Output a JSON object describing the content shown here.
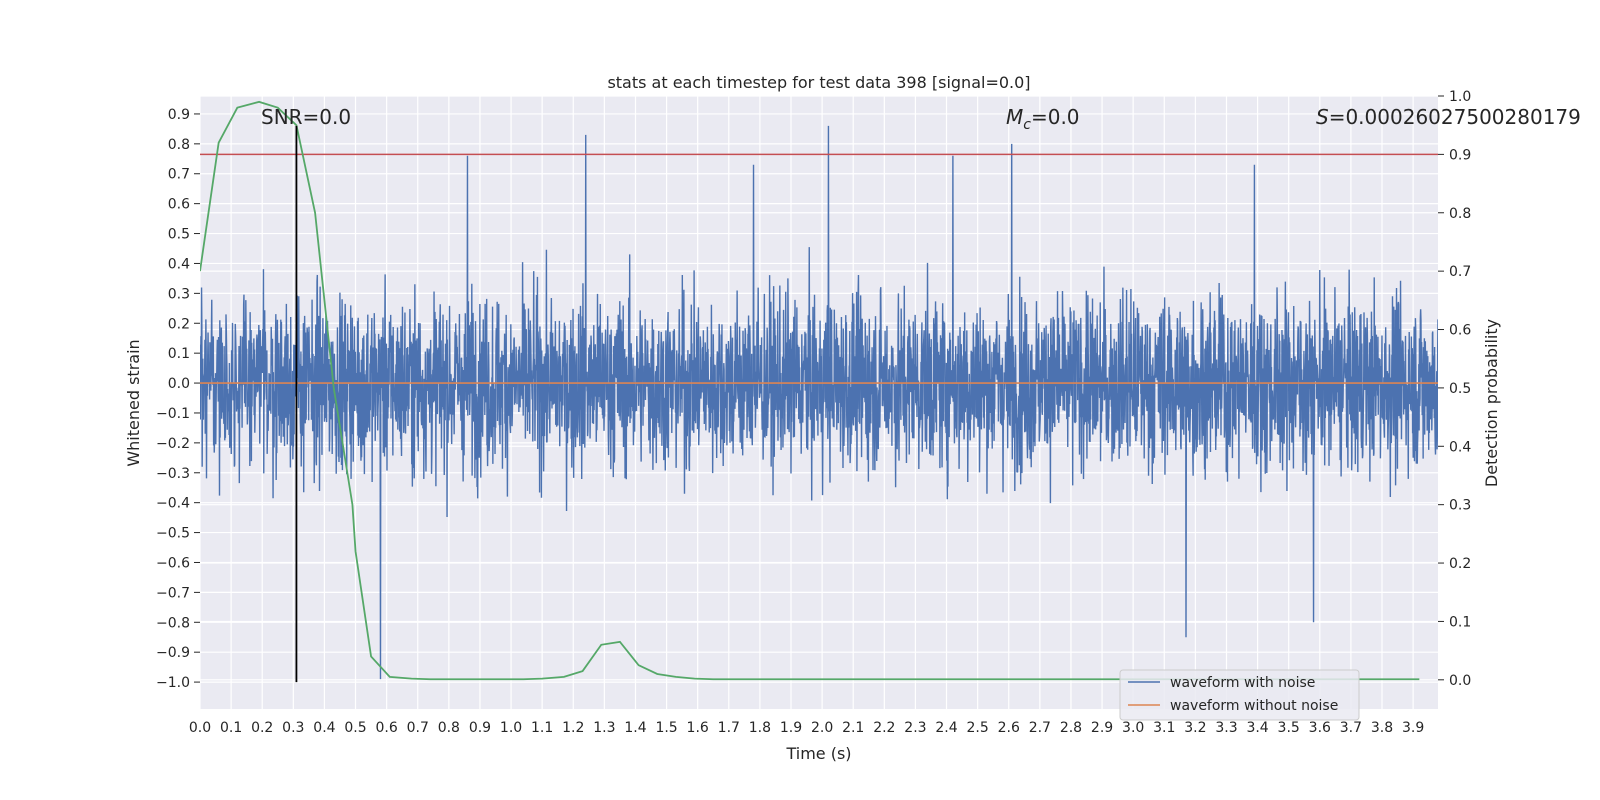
{
  "chart_data": {
    "type": "line",
    "title": "stats at each timestep for test data 398 [signal=0.0]",
    "xlabel": "Time (s)",
    "ylabel": "Whitened strain",
    "y2label": "Detection probability",
    "xlim": [
      0.0,
      3.98
    ],
    "ylim": [
      -1.09,
      0.96
    ],
    "y2lim": [
      -0.05,
      1.0
    ],
    "xticks": [
      "0.0",
      "0.1",
      "0.2",
      "0.3",
      "0.4",
      "0.5",
      "0.6",
      "0.7",
      "0.8",
      "0.9",
      "1.0",
      "1.1",
      "1.2",
      "1.3",
      "1.4",
      "1.5",
      "1.6",
      "1.7",
      "1.8",
      "1.9",
      "2.0",
      "2.1",
      "2.2",
      "2.3",
      "2.4",
      "2.5",
      "2.6",
      "2.7",
      "2.8",
      "2.9",
      "3.0",
      "3.1",
      "3.2",
      "3.3",
      "3.4",
      "3.5",
      "3.6",
      "3.7",
      "3.8",
      "3.9"
    ],
    "yticks": [
      "0.9",
      "0.8",
      "0.7",
      "0.6",
      "0.5",
      "0.4",
      "0.3",
      "0.2",
      "0.1",
      "0.0",
      "−0.1",
      "−0.2",
      "−0.3",
      "−0.4",
      "−0.5",
      "−0.6",
      "−0.7",
      "−0.8",
      "−0.9",
      "−1.0"
    ],
    "y2ticks": [
      "1.0",
      "0.9",
      "0.8",
      "0.7",
      "0.6",
      "0.5",
      "0.4",
      "0.3",
      "0.2",
      "0.1",
      "0.0"
    ],
    "annotations": {
      "snr": "SNR=0.0",
      "mc_symbol": "M",
      "mc_sub": "c",
      "mc_value": "=0.0",
      "s_symbol": "S",
      "s_value": "=0.00026027500280179"
    },
    "series": [
      {
        "name": "waveform with noise",
        "color": "#4c72b0",
        "description": "noise-like whitened strain, mostly within ±0.5, spikes up to ~0.86 and down to ~−1.0",
        "spikes": [
          {
            "x": 0.58,
            "y": -0.99
          },
          {
            "x": 1.24,
            "y": 0.83
          },
          {
            "x": 2.02,
            "y": 0.86
          },
          {
            "x": 2.61,
            "y": 0.8
          },
          {
            "x": 3.17,
            "y": -0.85
          },
          {
            "x": 3.39,
            "y": 0.73
          },
          {
            "x": 3.58,
            "y": -0.8
          },
          {
            "x": 0.86,
            "y": 0.76
          },
          {
            "x": 1.78,
            "y": 0.73
          },
          {
            "x": 2.42,
            "y": 0.76
          }
        ]
      },
      {
        "name": "waveform without noise",
        "color": "#dd8452",
        "x": [
          0.0,
          3.98
        ],
        "y": [
          0.0,
          0.0
        ]
      },
      {
        "name": "detection probability",
        "color": "#55a868",
        "axis": "y2",
        "x": [
          0.0,
          0.06,
          0.12,
          0.19,
          0.25,
          0.31,
          0.37,
          0.43,
          0.49,
          0.5,
          0.55,
          0.61,
          0.68,
          0.74,
          0.8,
          0.86,
          0.92,
          0.98,
          1.04,
          1.1,
          1.17,
          1.23,
          1.29,
          1.35,
          1.41,
          1.47,
          1.53,
          1.59,
          1.65,
          1.72,
          1.78,
          1.84,
          1.9,
          1.96,
          2.02,
          2.5,
          3.0,
          3.5,
          3.92
        ],
        "y": [
          0.7,
          0.92,
          0.98,
          0.99,
          0.98,
          0.95,
          0.8,
          0.5,
          0.3,
          0.22,
          0.04,
          0.005,
          0.002,
          0.001,
          0.001,
          0.001,
          0.001,
          0.001,
          0.001,
          0.002,
          0.005,
          0.015,
          0.06,
          0.065,
          0.025,
          0.01,
          0.005,
          0.002,
          0.001,
          0.001,
          0.001,
          0.001,
          0.001,
          0.001,
          0.001,
          0.001,
          0.001,
          0.001,
          0.001
        ]
      },
      {
        "name": "threshold",
        "color": "#c44e52",
        "axis": "y2",
        "x": [
          0.0,
          3.98
        ],
        "y": [
          0.9,
          0.9
        ]
      },
      {
        "name": "event marker",
        "color": "#000000",
        "x": [
          0.31,
          0.31
        ],
        "y": [
          -1.0,
          0.86
        ]
      }
    ],
    "legend": {
      "position": "lower-right",
      "entries": [
        {
          "label": "waveform with noise",
          "color": "#4c72b0"
        },
        {
          "label": "waveform without noise",
          "color": "#dd8452"
        }
      ]
    },
    "grid": true,
    "background": "#eaeaf2"
  }
}
